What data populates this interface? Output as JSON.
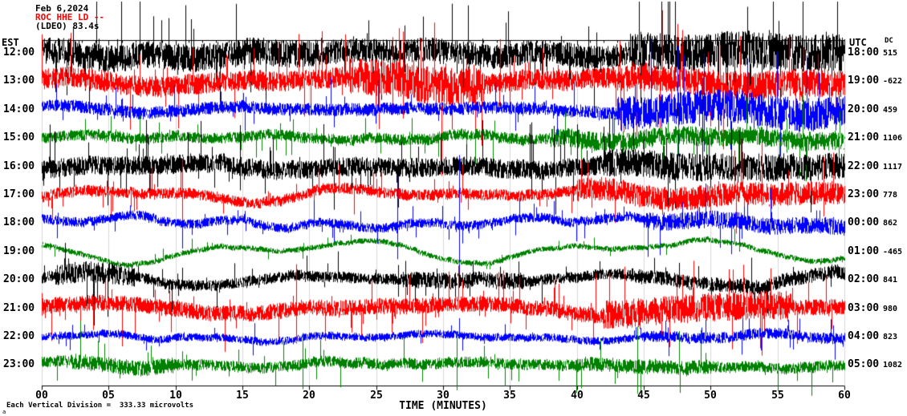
{
  "header": {
    "date": "Feb 6,2024",
    "station": "ROC HHE LD --",
    "meta": "(LDEO) 83.4s"
  },
  "axis": {
    "left_tz": "EST",
    "right_tz": "UTC",
    "dc_label": "DC",
    "x_title": "TIME (MINUTES)",
    "x_ticks": [
      "00",
      "05",
      "10",
      "15",
      "20",
      "25",
      "30",
      "35",
      "40",
      "45",
      "50",
      "55",
      "60"
    ],
    "footer": "Each Vertical Division =  333.33 microvolts",
    "corner": "a"
  },
  "chart_data": {
    "type": "line",
    "subtype": "helicorder-seismogram",
    "title": "ROC HHE LD seismogram, Feb 6 2024",
    "x_unit": "minutes",
    "x_range": [
      0,
      60
    ],
    "minutes_per_row": 60,
    "vertical_division_microvolts": 333.33,
    "trace_colors": {
      "black": "#000000",
      "red": "#ff0000",
      "blue": "#0000ff",
      "green": "#008000"
    },
    "rows": [
      {
        "est": "12:00",
        "utc": "18:00",
        "dc": 515,
        "color": "#000000",
        "amp": 15,
        "wander": 5,
        "spike": 0.035,
        "bursts": [
          [
            0,
            22,
            1.15
          ],
          [
            44,
            60,
            1.55
          ]
        ],
        "big": []
      },
      {
        "est": "13:00",
        "utc": "19:00",
        "dc": -622,
        "color": "#ff0000",
        "amp": 13,
        "wander": 6,
        "spike": 0.03,
        "bursts": [
          [
            23,
            33,
            1.8
          ],
          [
            43,
            60,
            1.35
          ]
        ],
        "big": [
          {
            "m": 26.2,
            "mag": 55
          },
          {
            "m": 27,
            "mag": 62
          }
        ]
      },
      {
        "est": "14:00",
        "utc": "20:00",
        "dc": 459,
        "color": "#0000ff",
        "amp": 8,
        "wander": 5,
        "spike": 0.02,
        "bursts": [
          [
            43,
            60,
            2.6
          ]
        ],
        "big": [
          {
            "m": 49.5,
            "mag": 70
          }
        ]
      },
      {
        "est": "15:00",
        "utc": "21:00",
        "dc": 1106,
        "color": "#008000",
        "amp": 7,
        "wander": 5,
        "spike": 0.02,
        "bursts": [
          [
            38,
            60,
            1.7
          ]
        ],
        "big": []
      },
      {
        "est": "16:00",
        "utc": "22:00",
        "dc": 1117,
        "color": "#000000",
        "amp": 12,
        "wander": 5,
        "spike": 0.028,
        "bursts": [
          [
            42,
            60,
            1.45
          ]
        ],
        "big": [
          {
            "m": 36.6,
            "mag": 55
          }
        ]
      },
      {
        "est": "17:00",
        "utc": "23:00",
        "dc": 778,
        "color": "#ff0000",
        "amp": 7,
        "wander": 7,
        "spike": 0.02,
        "bursts": [
          [
            40,
            60,
            2.1
          ]
        ],
        "big": [
          {
            "m": 10.5,
            "mag": 45
          }
        ]
      },
      {
        "est": "18:00",
        "utc": "00:00",
        "dc": 862,
        "color": "#0000ff",
        "amp": 6,
        "wander": 8,
        "spike": 0.02,
        "bursts": [
          [
            45,
            60,
            1.8
          ]
        ],
        "big": [
          {
            "m": 26.6,
            "mag": 60
          },
          {
            "m": 31.2,
            "mag": 85
          }
        ]
      },
      {
        "est": "19:00",
        "utc": "01:00",
        "dc": -465,
        "color": "#008000",
        "amp": 3.5,
        "wander": 15,
        "spike": 0.012,
        "bursts": [],
        "big": []
      },
      {
        "est": "20:00",
        "utc": "02:00",
        "dc": 841,
        "color": "#000000",
        "amp": 7,
        "wander": 10,
        "spike": 0.02,
        "bursts": [
          [
            1,
            7,
            1.9
          ],
          [
            27,
            36,
            1.5
          ],
          [
            44,
            60,
            1.3
          ]
        ],
        "big": []
      },
      {
        "est": "21:00",
        "utc": "03:00",
        "dc": 980,
        "color": "#ff0000",
        "amp": 10,
        "wander": 7,
        "spike": 0.028,
        "bursts": [
          [
            42,
            56,
            1.8
          ]
        ],
        "big": [
          {
            "m": 19,
            "mag": 55
          }
        ]
      },
      {
        "est": "22:00",
        "utc": "04:00",
        "dc": 823,
        "color": "#0000ff",
        "amp": 5,
        "wander": 6,
        "spike": 0.016,
        "bursts": [
          [
            45,
            60,
            1.4
          ]
        ],
        "big": []
      },
      {
        "est": "23:00",
        "utc": "05:00",
        "dc": 1082,
        "color": "#008000",
        "amp": 7,
        "wander": 5,
        "spike": 0.02,
        "bursts": [
          [
            2,
            10,
            1.45
          ],
          [
            40,
            50,
            1.3
          ]
        ],
        "big": [
          {
            "m": 19.5,
            "mag": 40
          },
          {
            "m": 31,
            "mag": 42
          },
          {
            "m": 44.5,
            "mag": 48
          }
        ]
      }
    ]
  }
}
